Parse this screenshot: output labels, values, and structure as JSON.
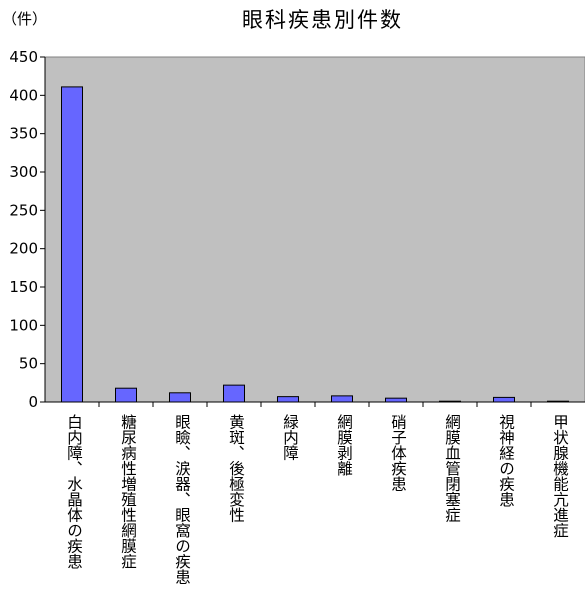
{
  "chart_data": {
    "type": "bar",
    "title": "眼科疾患別件数",
    "unit_label": "（件）",
    "xlabel": "",
    "ylabel": "",
    "ylim": [
      0,
      450
    ],
    "yticks": [
      "0",
      "50",
      "100",
      "150",
      "200",
      "250",
      "300",
      "350",
      "400",
      "450"
    ],
    "grid": false,
    "legend": "none",
    "categories": [
      "白内障、水晶体の疾患",
      "糖尿病性増殖性網膜症",
      "眼瞼、涙器、眼窩の疾患",
      "黄斑、後極変性",
      "緑内障",
      "網膜剥離",
      "硝子体疾患",
      "網膜血管閉塞症",
      "視神経の疾患",
      "甲状腺機能亢進症"
    ],
    "values": [
      411,
      18,
      12,
      22,
      7,
      8,
      5,
      1,
      6,
      0
    ],
    "colors": {
      "plot_background": "#c0c0c0",
      "bar_fill": "#6666ff",
      "bar_edge": "#000000"
    }
  }
}
